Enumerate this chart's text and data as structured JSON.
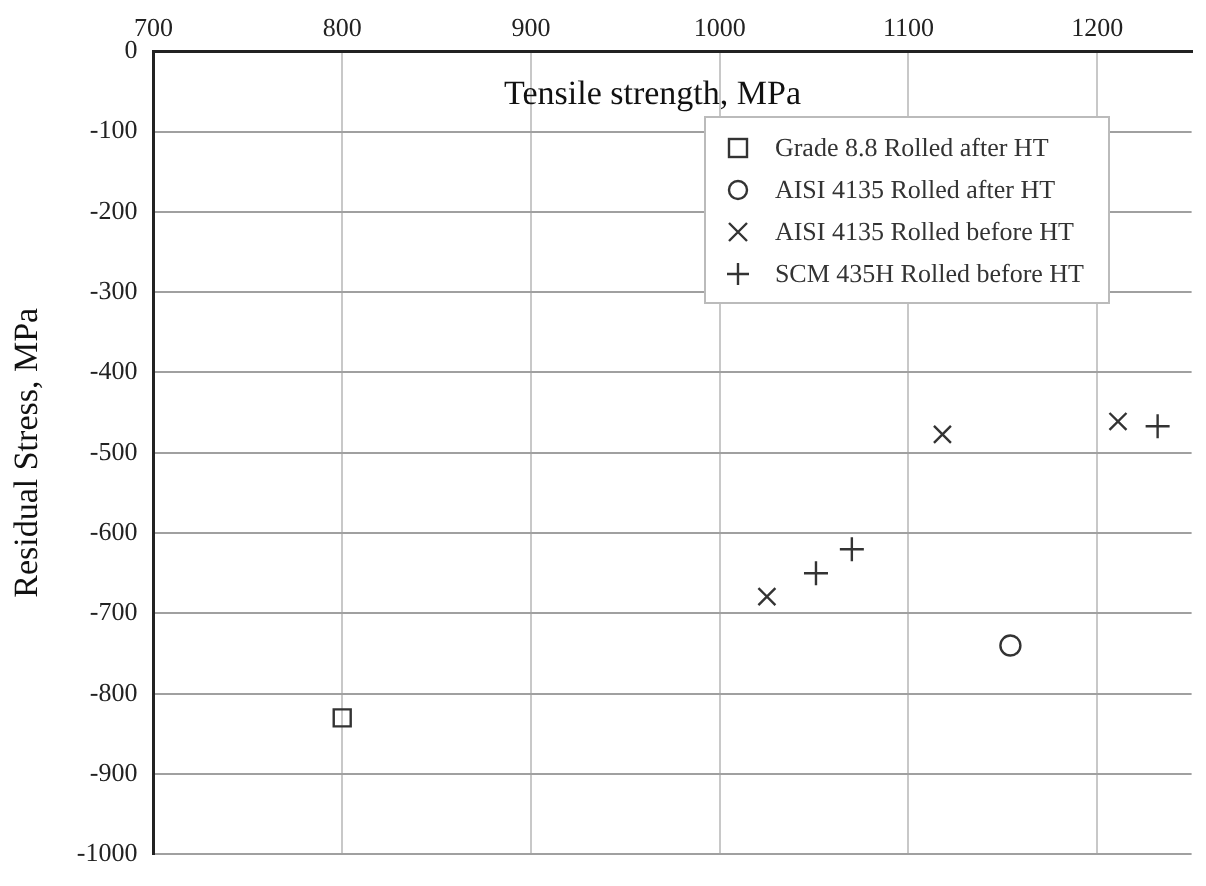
{
  "chart_data": {
    "type": "scatter",
    "xlabel": "Tensile strength, MPa",
    "ylabel": "Residual Stress, MPa",
    "xlim": [
      700,
      1250
    ],
    "xticks": [
      700,
      800,
      900,
      1000,
      1100,
      1200
    ],
    "ylim": [
      -1000,
      0
    ],
    "yticks": [
      -1000,
      -900,
      -800,
      -700,
      -600,
      -500,
      -400,
      -300,
      -200,
      -100,
      0
    ],
    "grid": true,
    "legend": "top right",
    "series": [
      {
        "name": "Grade 8.8 Rolled after HT",
        "color": "#333333",
        "marker": "square",
        "x": [
          800
        ],
        "values": [
          -830
        ]
      },
      {
        "name": "AISI 4135 Rolled after HT",
        "color": "#333333",
        "marker": "circle",
        "x": [
          1154
        ],
        "values": [
          -740
        ]
      },
      {
        "name": "AISI 4135 Rolled before HT",
        "color": "#333333",
        "marker": "cross",
        "x": [
          1025,
          1118,
          1211
        ],
        "values": [
          -679,
          -477,
          -461
        ]
      },
      {
        "name": "SCM 435H Rolled before HT",
        "color": "#333333",
        "marker": "plus",
        "x": [
          1051,
          1070,
          1232
        ],
        "values": [
          -650,
          -620,
          -467
        ]
      }
    ]
  }
}
